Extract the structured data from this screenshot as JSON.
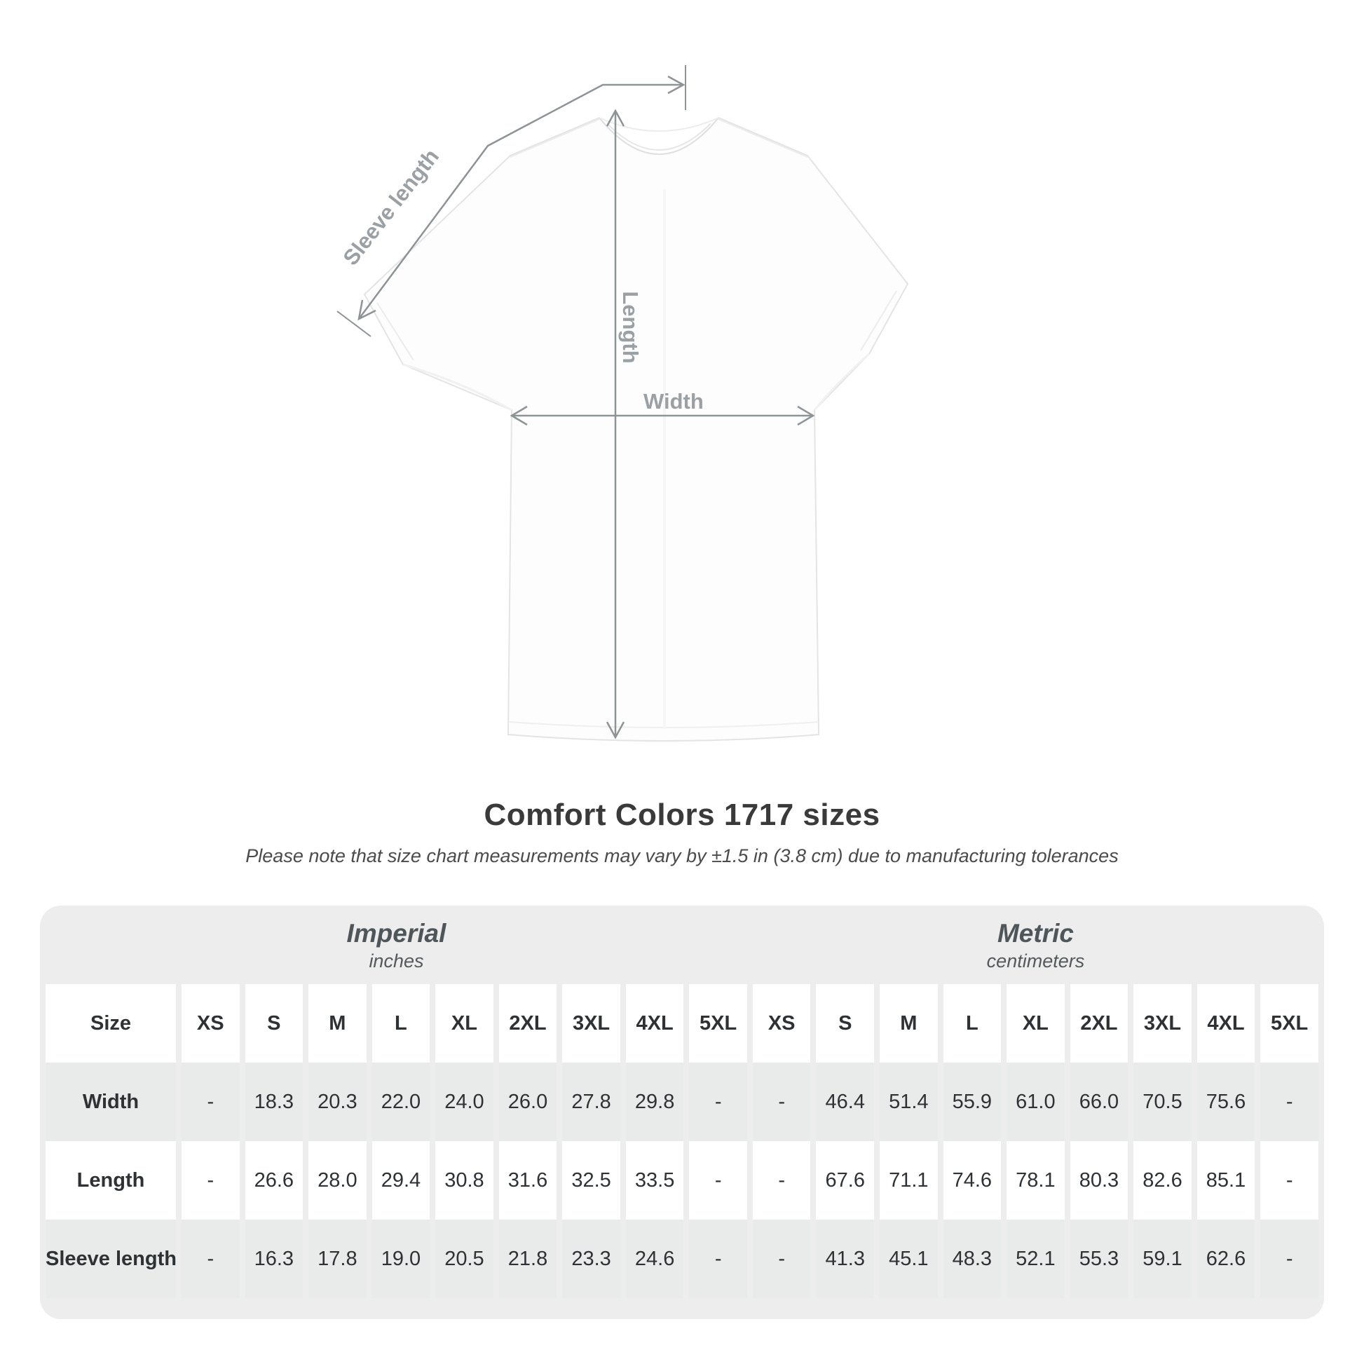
{
  "header": {
    "title": "Comfort Colors 1717 sizes",
    "note": "Please note that size chart measurements may vary by ±1.5 in (3.8 cm) due to manufacturing tolerances"
  },
  "diagram": {
    "labels": {
      "width": "Width",
      "length": "Length",
      "sleeve": "Sleeve length"
    },
    "line_color": "#8e9396",
    "label_color": "#9aa0a4"
  },
  "table": {
    "unit_groups": [
      {
        "label": "Imperial",
        "sublabel": "inches"
      },
      {
        "label": "Metric",
        "sublabel": "centimeters"
      }
    ],
    "size_col_header": "Size",
    "sizes": [
      "XS",
      "S",
      "M",
      "L",
      "XL",
      "2XL",
      "3XL",
      "4XL",
      "5XL"
    ],
    "rows": [
      {
        "label": "Width",
        "imperial": [
          "-",
          "18.3",
          "20.3",
          "22.0",
          "24.0",
          "26.0",
          "27.8",
          "29.8",
          "-"
        ],
        "metric": [
          "-",
          "46.4",
          "51.4",
          "55.9",
          "61.0",
          "66.0",
          "70.5",
          "75.6",
          "-"
        ]
      },
      {
        "label": "Length",
        "imperial": [
          "-",
          "26.6",
          "28.0",
          "29.4",
          "30.8",
          "31.6",
          "32.5",
          "33.5",
          "-"
        ],
        "metric": [
          "-",
          "67.6",
          "71.1",
          "74.6",
          "78.1",
          "80.3",
          "82.6",
          "85.1",
          "-"
        ]
      },
      {
        "label": "Sleeve length",
        "imperial": [
          "-",
          "16.3",
          "17.8",
          "19.0",
          "20.5",
          "21.8",
          "23.3",
          "24.6",
          "-"
        ],
        "metric": [
          "-",
          "41.3",
          "45.1",
          "48.3",
          "52.1",
          "55.3",
          "59.1",
          "62.6",
          "-"
        ]
      }
    ]
  },
  "colors": {
    "card_bg": "#ededed",
    "row_gray": "#e9eaea",
    "row_white": "#ffffff",
    "title_text": "#3a3a3a",
    "header_text": "#575e62",
    "value_text": "#2e3234"
  }
}
